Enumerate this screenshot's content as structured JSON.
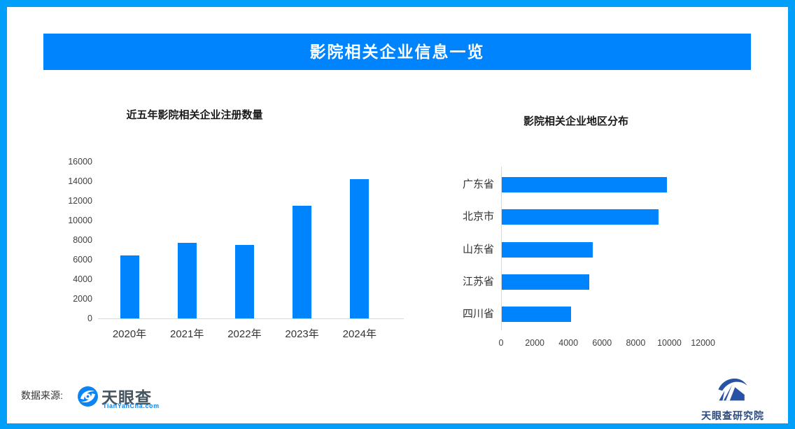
{
  "page": {
    "banner_title": "影院相关企业信息一览",
    "accent_color": "#0084fe",
    "border_color": "#019ff9"
  },
  "chart_data": [
    {
      "type": "bar",
      "orientation": "vertical",
      "title": "近五年影院相关企业注册数量",
      "categories": [
        "2020年",
        "2021年",
        "2022年",
        "2023年",
        "2024年"
      ],
      "values": [
        6400,
        7700,
        7500,
        11500,
        14200
      ],
      "xlabel": "",
      "ylabel": "",
      "ylim": [
        0,
        16000
      ],
      "yticks": [
        0,
        2000,
        4000,
        6000,
        8000,
        10000,
        12000,
        14000,
        16000
      ],
      "grid": false,
      "legend": false,
      "bar_color": "#0084fe"
    },
    {
      "type": "bar",
      "orientation": "horizontal",
      "title": "影院相关企业地区分布",
      "categories": [
        "广东省",
        "北京市",
        "山东省",
        "江苏省",
        "四川省"
      ],
      "values": [
        9800,
        9300,
        5400,
        5200,
        4100
      ],
      "xlabel": "",
      "ylabel": "",
      "xlim": [
        0,
        12400
      ],
      "xticks": [
        0,
        2000,
        4000,
        6000,
        8000,
        10000,
        12000
      ],
      "grid": false,
      "legend": false,
      "bar_color": "#0084fe"
    }
  ],
  "footer": {
    "source_label": "数据来源:",
    "source_logo_name": "天眼查",
    "source_logo_url_text": "TianYanCha.com",
    "institute_logo_text": "天眼查研究院"
  }
}
